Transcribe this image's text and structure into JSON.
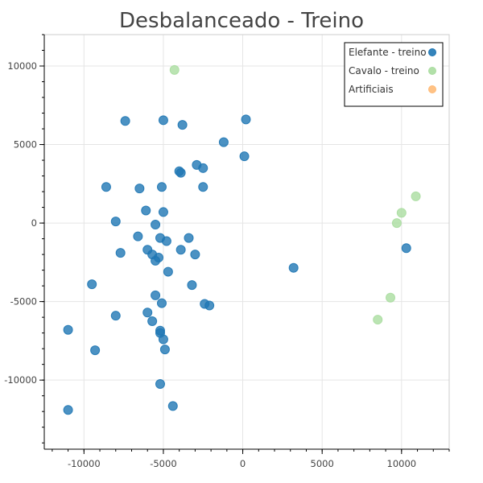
{
  "chart_data": {
    "type": "scatter",
    "title": "Desbalanceado - Treino",
    "xlabel": "",
    "ylabel": "",
    "xlim": [
      -12500,
      13000
    ],
    "ylim": [
      -14400,
      12000
    ],
    "grid": true,
    "legend_position": "top-right",
    "x_ticks": [
      -10000,
      -5000,
      0,
      5000,
      10000
    ],
    "y_ticks": [
      -10000,
      -5000,
      0,
      5000,
      10000
    ],
    "series": [
      {
        "name": "Elefante - treino",
        "color": "#1f77b4",
        "points": [
          [
            -7400,
            6500
          ],
          [
            -5000,
            6550
          ],
          [
            -3800,
            6250
          ],
          [
            200,
            6600
          ],
          [
            -1200,
            5150
          ],
          [
            100,
            4250
          ],
          [
            -2900,
            3700
          ],
          [
            -2500,
            3500
          ],
          [
            -4000,
            3300
          ],
          [
            -3900,
            3200
          ],
          [
            -8600,
            2300
          ],
          [
            -6500,
            2200
          ],
          [
            -5100,
            2300
          ],
          [
            -2500,
            2300
          ],
          [
            -6100,
            800
          ],
          [
            -5000,
            700
          ],
          [
            -8000,
            100
          ],
          [
            -5500,
            -100
          ],
          [
            -6600,
            -850
          ],
          [
            -5200,
            -950
          ],
          [
            -4800,
            -1150
          ],
          [
            -3400,
            -950
          ],
          [
            -7700,
            -1900
          ],
          [
            -6000,
            -1700
          ],
          [
            -5700,
            -2000
          ],
          [
            -5300,
            -2200
          ],
          [
            -5500,
            -2400
          ],
          [
            -3900,
            -1700
          ],
          [
            -3000,
            -2000
          ],
          [
            -4700,
            -3100
          ],
          [
            3200,
            -2850
          ],
          [
            -9500,
            -3900
          ],
          [
            -3200,
            -3950
          ],
          [
            -5500,
            -4600
          ],
          [
            -5100,
            -5100
          ],
          [
            -2400,
            -5150
          ],
          [
            -2100,
            -5250
          ],
          [
            -6000,
            -5700
          ],
          [
            -8000,
            -5900
          ],
          [
            -5700,
            -6250
          ],
          [
            -11000,
            -6800
          ],
          [
            -5200,
            -6850
          ],
          [
            -5200,
            -7000
          ],
          [
            -5000,
            -7400
          ],
          [
            -4900,
            -8050
          ],
          [
            -9300,
            -8100
          ],
          [
            -5200,
            -10250
          ],
          [
            -4400,
            -11650
          ],
          [
            -11000,
            -11900
          ],
          [
            10300,
            -1600
          ]
        ]
      },
      {
        "name": "Cavalo - treino",
        "color": "#aadda0",
        "points": [
          [
            -4300,
            9750
          ],
          [
            10900,
            1700
          ],
          [
            10000,
            650
          ],
          [
            9700,
            0
          ],
          [
            9300,
            -4750
          ],
          [
            8500,
            -6150
          ]
        ]
      },
      {
        "name": "Artificiais",
        "color": "#ffbb78",
        "points": []
      }
    ]
  }
}
